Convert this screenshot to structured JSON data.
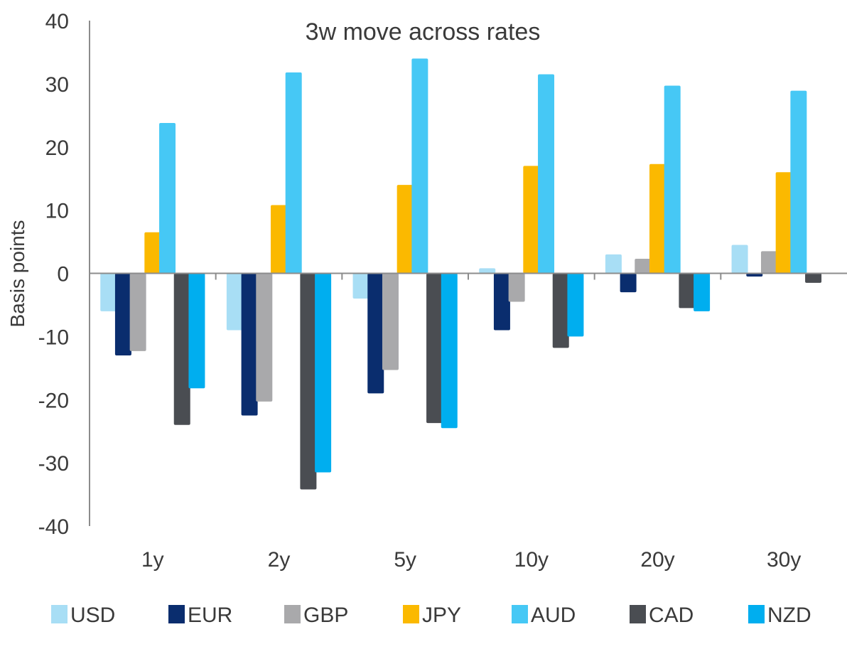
{
  "chart_data": {
    "type": "bar",
    "title": "3w move across rates",
    "ylabel": "Basis points",
    "xlabel": "",
    "ylim": [
      -40,
      40
    ],
    "yticks": [
      40,
      30,
      20,
      10,
      0,
      -10,
      -20,
      -30,
      -40
    ],
    "categories": [
      "1y",
      "2y",
      "5y",
      "10y",
      "20y",
      "30y"
    ],
    "legend_position": "bottom",
    "grid": false,
    "series": [
      {
        "name": "USD",
        "color": "#a8def5",
        "values": [
          -6,
          -9,
          -4,
          0.8,
          3,
          4.5
        ]
      },
      {
        "name": "EUR",
        "color": "#0a2d6e",
        "values": [
          -13,
          -22.5,
          -19,
          -9,
          -3,
          -0.5
        ]
      },
      {
        "name": "GBP",
        "color": "#a9a9ab",
        "values": [
          -12.3,
          -20.3,
          -15.3,
          -4.5,
          2.3,
          3.5
        ]
      },
      {
        "name": "JPY",
        "color": "#fbb900",
        "values": [
          6.5,
          10.8,
          14,
          17,
          17.3,
          16
        ]
      },
      {
        "name": "AUD",
        "color": "#46c8f5",
        "values": [
          23.8,
          31.8,
          34,
          31.5,
          29.7,
          28.9
        ]
      },
      {
        "name": "CAD",
        "color": "#4a4d52",
        "values": [
          -24,
          -34.2,
          -23.7,
          -11.8,
          -5.5,
          -1.5
        ]
      },
      {
        "name": "NZD",
        "color": "#00aeef",
        "values": [
          -18.2,
          -31.5,
          -24.5,
          -10,
          -6,
          0
        ]
      }
    ]
  }
}
